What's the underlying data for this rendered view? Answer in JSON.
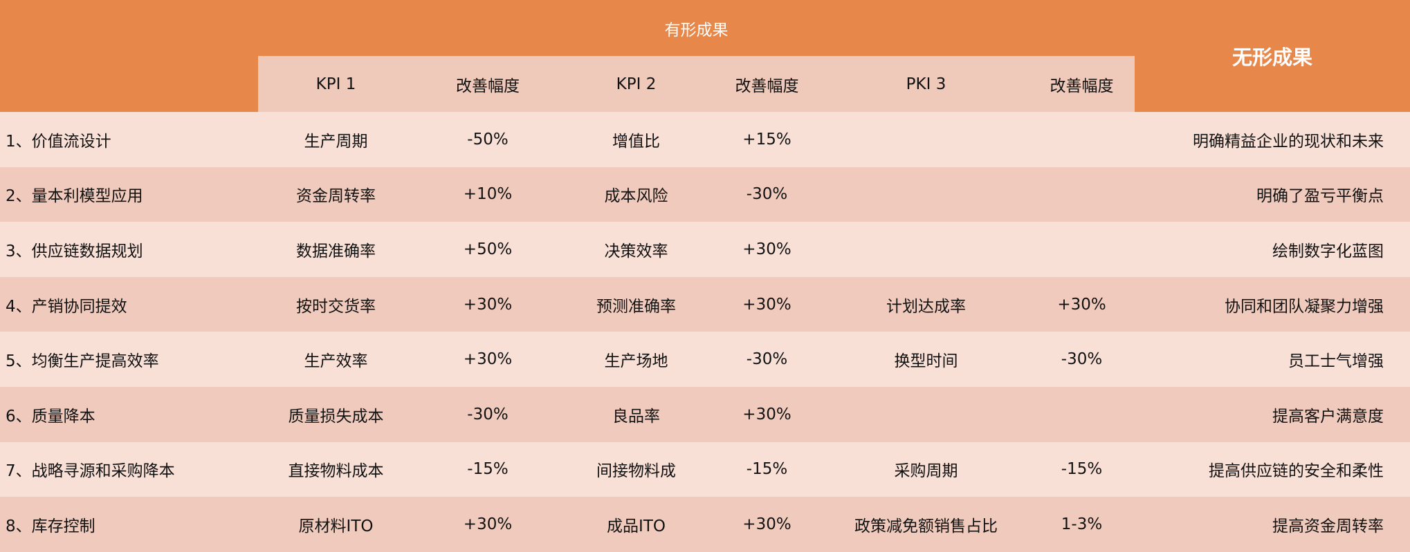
{
  "header": {
    "tangible": "有形成果",
    "intangible": "无形成果",
    "columns": [
      "KPI 1",
      "改善幅度",
      "KPI 2",
      "改善幅度",
      "PKI 3",
      "改善幅度"
    ]
  },
  "colors": {
    "header_orange": "#e8874a",
    "subheader": "#efc9ba",
    "row_light": "#f9e0d7",
    "row_dark": "#f0cbbd"
  },
  "rows": [
    {
      "name": "1、价值流设计",
      "kpi1": "生产周期",
      "imp1": "-50%",
      "kpi2": "增值比",
      "imp2": "+15%",
      "kpi3": "",
      "imp3": "",
      "intangible": "明确精益企业的现状和未来"
    },
    {
      "name": "2、量本利模型应用",
      "kpi1": "资金周转率",
      "imp1": "+10%",
      "kpi2": "成本风险",
      "imp2": "-30%",
      "kpi3": "",
      "imp3": "",
      "intangible": "明确了盈亏平衡点"
    },
    {
      "name": "3、供应链数据规划",
      "kpi1": "数据准确率",
      "imp1": "+50%",
      "kpi2": "决策效率",
      "imp2": "+30%",
      "kpi3": "",
      "imp3": "",
      "intangible": "绘制数字化蓝图"
    },
    {
      "name": "4、产销协同提效",
      "kpi1": "按时交货率",
      "imp1": "+30%",
      "kpi2": "预测准确率",
      "imp2": "+30%",
      "kpi3": "计划达成率",
      "imp3": "+30%",
      "intangible": "协同和团队凝聚力增强"
    },
    {
      "name": "5、均衡生产提高效率",
      "kpi1": "生产效率",
      "imp1": "+30%",
      "kpi2": "生产场地",
      "imp2": "-30%",
      "kpi3": "换型时间",
      "imp3": "-30%",
      "intangible": "员工士气增强"
    },
    {
      "name": "6、质量降本",
      "kpi1": "质量损失成本",
      "imp1": "-30%",
      "kpi2": "良品率",
      "imp2": "+30%",
      "kpi3": "",
      "imp3": "",
      "intangible": "提高客户满意度"
    },
    {
      "name": "7、战略寻源和采购降本",
      "kpi1": "直接物料成本",
      "imp1": "-15%",
      "kpi2": "间接物料成",
      "imp2": "-15%",
      "kpi3": "采购周期",
      "imp3": "-15%",
      "intangible": "提高供应链的安全和柔性"
    },
    {
      "name": "8、库存控制",
      "kpi1": "原材料ITO",
      "imp1": "+30%",
      "kpi2": "成品ITO",
      "imp2": "+30%",
      "kpi3": "政策减免额销售占比",
      "imp3": "1-3%",
      "intangible": "提高资金周转率"
    }
  ]
}
